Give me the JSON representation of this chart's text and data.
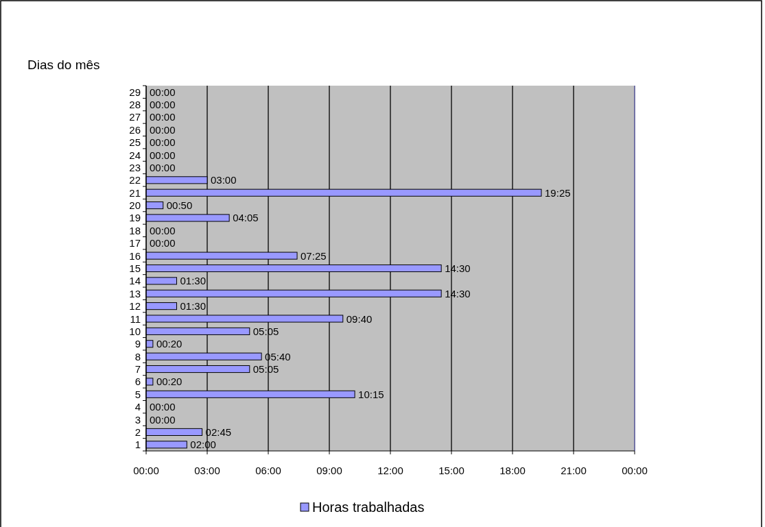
{
  "chart_data": {
    "type": "bar",
    "orientation": "horizontal",
    "ylabel": "Dias do mês",
    "categories": [
      "29",
      "28",
      "27",
      "26",
      "25",
      "24",
      "23",
      "22",
      "21",
      "20",
      "19",
      "18",
      "17",
      "16",
      "15",
      "14",
      "13",
      "12",
      "11",
      "10",
      "9",
      "8",
      "7",
      "6",
      "5",
      "4",
      "3",
      "2",
      "1"
    ],
    "series": [
      {
        "name": "Horas trabalhadas",
        "color": "#9999ff",
        "values": [
          0,
          0,
          0,
          0,
          0,
          0,
          0,
          3,
          19.417,
          0.833,
          4.083,
          0,
          0,
          7.417,
          14.5,
          1.5,
          14.5,
          1.5,
          9.667,
          5.083,
          0.333,
          5.667,
          5.083,
          0.333,
          10.25,
          0,
          0,
          2.75,
          2
        ],
        "value_labels": [
          "00:00",
          "00:00",
          "00:00",
          "00:00",
          "00:00",
          "00:00",
          "00:00",
          "03:00",
          "19:25",
          "00:50",
          "04:05",
          "00:00",
          "00:00",
          "07:25",
          "14:30",
          "01:30",
          "14:30",
          "01:30",
          "09:40",
          "05:05",
          "00:20",
          "05:40",
          "05:05",
          "00:20",
          "10:15",
          "00:00",
          "00:00",
          "02:45",
          "02:00"
        ]
      }
    ],
    "xlim": [
      0,
      24
    ],
    "xticks": [
      {
        "value": 0,
        "label": "00:00"
      },
      {
        "value": 3,
        "label": "03:00"
      },
      {
        "value": 6,
        "label": "06:00"
      },
      {
        "value": 9,
        "label": "09:00"
      },
      {
        "value": 12,
        "label": "12:00"
      },
      {
        "value": 15,
        "label": "15:00"
      },
      {
        "value": 18,
        "label": "18:00"
      },
      {
        "value": 21,
        "label": "21:00"
      },
      {
        "value": 24,
        "label": "00:00"
      }
    ],
    "grid": "x",
    "legend": "bottom"
  }
}
